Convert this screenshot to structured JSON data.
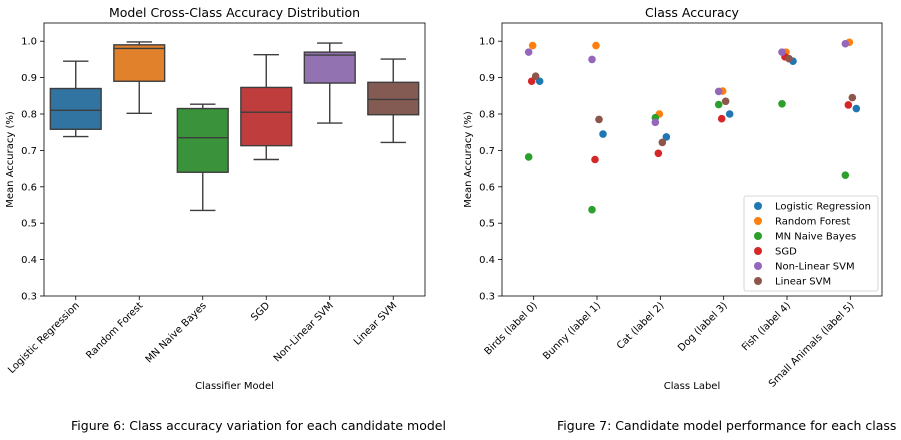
{
  "chart_data": [
    {
      "type": "box",
      "title": "Model Cross-Class Accuracy Distribution",
      "xlabel": "Classifier Model",
      "ylabel": "Mean Accuracy (%)",
      "ylim": [
        0.3,
        1.05
      ],
      "yticks": [
        "0.3",
        "0.4",
        "0.5",
        "0.6",
        "0.7",
        "0.8",
        "0.9",
        "1.0"
      ],
      "categories": [
        "Logistic Regression",
        "Random Forest",
        "MN Naive Bayes",
        "SGD",
        "Non-Linear SVM",
        "Linear SVM"
      ],
      "boxes": [
        {
          "name": "Logistic Regression",
          "color": "#3274a1",
          "min": 0.738,
          "q1": 0.758,
          "median": 0.81,
          "q3": 0.87,
          "max": 0.945
        },
        {
          "name": "Random Forest",
          "color": "#e1812c",
          "min": 0.802,
          "q1": 0.89,
          "median": 0.98,
          "q3": 0.99,
          "max": 0.998
        },
        {
          "name": "MN Naive Bayes",
          "color": "#3a923a",
          "min": 0.535,
          "q1": 0.64,
          "median": 0.735,
          "q3": 0.815,
          "max": 0.827
        },
        {
          "name": "SGD",
          "color": "#c03d3e",
          "min": 0.675,
          "q1": 0.713,
          "median": 0.805,
          "q3": 0.873,
          "max": 0.963
        },
        {
          "name": "Non-Linear SVM",
          "color": "#9372b2",
          "min": 0.775,
          "q1": 0.885,
          "median": 0.962,
          "q3": 0.97,
          "max": 0.995
        },
        {
          "name": "Linear SVM",
          "color": "#845b53",
          "min": 0.722,
          "q1": 0.798,
          "median": 0.84,
          "q3": 0.887,
          "max": 0.951
        }
      ]
    },
    {
      "type": "scatter",
      "title": "Class Accuracy",
      "xlabel": "Class Label",
      "ylabel": "Mean Accuracy (%)",
      "ylim": [
        0.3,
        1.05
      ],
      "yticks": [
        "0.3",
        "0.4",
        "0.5",
        "0.6",
        "0.7",
        "0.8",
        "0.9",
        "1.0"
      ],
      "categories": [
        "Birds (label 0)",
        "Bunny (label 1)",
        "Cat (label 2)",
        "Dog (label 3)",
        "Fish (label 4)",
        "Small Animals (label 5)"
      ],
      "legend_position": "bottom-right",
      "series": [
        {
          "name": "Logistic Regression",
          "color": "#1f77b4",
          "values": [
            0.89,
            0.745,
            0.737,
            0.8,
            0.945,
            0.815
          ]
        },
        {
          "name": "Random Forest",
          "color": "#ff7f0e",
          "values": [
            0.988,
            0.988,
            0.8,
            0.863,
            0.97,
            0.997
          ]
        },
        {
          "name": "MN Naive Bayes",
          "color": "#2ca02c",
          "values": [
            0.682,
            0.537,
            0.79,
            0.826,
            0.828,
            0.632
          ]
        },
        {
          "name": "SGD",
          "color": "#d62728",
          "values": [
            0.89,
            0.675,
            0.692,
            0.787,
            0.957,
            0.825
          ]
        },
        {
          "name": "Non-Linear SVM",
          "color": "#9467bd",
          "values": [
            0.97,
            0.95,
            0.777,
            0.862,
            0.97,
            0.993
          ]
        },
        {
          "name": "Linear SVM",
          "color": "#8c564b",
          "values": [
            0.904,
            0.785,
            0.722,
            0.835,
            0.952,
            0.845
          ]
        }
      ]
    }
  ],
  "captions": {
    "left": "Figure 6: Class accuracy variation for each candidate model",
    "right": "Figure 7: Candidate model performance for each class"
  }
}
